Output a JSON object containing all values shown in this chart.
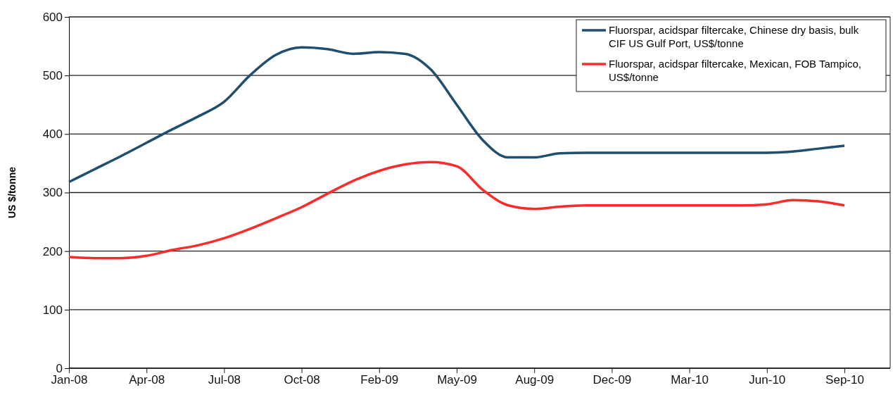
{
  "chart_data": {
    "type": "line",
    "ylabel": "US $/tonne",
    "categories": [
      "Jan-08",
      null,
      null,
      "Apr-08",
      null,
      null,
      "Jul-08",
      null,
      null,
      "Oct-08",
      null,
      null,
      "Feb-09",
      null,
      null,
      "May-09",
      null,
      null,
      "Aug-09",
      null,
      null,
      "Dec-09",
      null,
      null,
      "Mar-10",
      null,
      null,
      "Jun-10",
      null,
      null,
      "Sep-10"
    ],
    "series": [
      {
        "name": "Fluorspar, acidspar filtercake, Chinese dry basis, bulk CIF US Gulf Port, US$/tonne",
        "color": "#1f4e6e",
        "values": [
          318,
          340,
          362,
          385,
          408,
          430,
          455,
          500,
          535,
          548,
          545,
          537,
          540,
          537,
          510,
          450,
          390,
          360,
          360,
          367,
          368,
          368,
          368,
          368,
          368,
          368,
          368,
          368,
          370,
          375,
          380
        ]
      },
      {
        "name": "Fluorspar, acidspar filtercake, Mexican, FOB Tampico, US$/tonne",
        "color": "#ff2a2a",
        "values": [
          190,
          188,
          188,
          192,
          202,
          210,
          222,
          238,
          256,
          275,
          298,
          320,
          337,
          348,
          352,
          345,
          305,
          278,
          272,
          276,
          278,
          278,
          278,
          278,
          278,
          278,
          278,
          280,
          287,
          285,
          278
        ]
      }
    ],
    "ylim": [
      0,
      600
    ],
    "yticks": [
      0,
      100,
      200,
      300,
      400,
      500,
      600
    ],
    "grid": "y",
    "legend": "top right",
    "line_style": "solid",
    "marker": "none"
  }
}
